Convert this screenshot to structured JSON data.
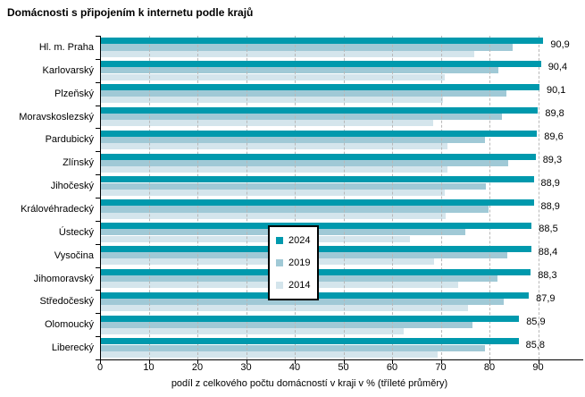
{
  "title": "Domácnosti s připojením k internetu podle krajů",
  "chart_data": {
    "type": "bar",
    "orientation": "horizontal",
    "title": "Domácnosti s připojením k internetu podle krajů",
    "categories": [
      "Hl. m. Praha",
      "Karlovarský",
      "Plzeňský",
      "Moravskoslezský",
      "Pardubický",
      "Zlínský",
      "Jihočeský",
      "Královéhradecký",
      "Ústecký",
      "Vysočina",
      "Jihomoravský",
      "Středočeský",
      "Olomoucký",
      "Liberecký"
    ],
    "series": [
      {
        "name": "2024",
        "color": "#0099ad",
        "values": [
          90.9,
          90.4,
          90.1,
          89.8,
          89.6,
          89.3,
          88.9,
          88.9,
          88.5,
          88.4,
          88.3,
          87.9,
          85.9,
          85.8
        ],
        "value_labels": [
          "90,9",
          "90,4",
          "90,1",
          "89,8",
          "89,6",
          "89,3",
          "88,9",
          "88,9",
          "88,5",
          "88,4",
          "88,3",
          "87,9",
          "85,9",
          "85,8"
        ]
      },
      {
        "name": "2019",
        "color": "#a0c9d6",
        "values": [
          84.6,
          81.6,
          83.3,
          82.4,
          78.9,
          83.7,
          79.0,
          79.6,
          74.9,
          83.4,
          81.4,
          82.7,
          76.4,
          78.8
        ]
      },
      {
        "name": "2014",
        "color": "#d4e5ec",
        "values": [
          76.7,
          70.6,
          70.2,
          68.2,
          71.2,
          71.1,
          70.6,
          70.9,
          63.4,
          68.4,
          73.3,
          75.4,
          62.2,
          69.2
        ]
      }
    ],
    "xlabel": "podíl z celkového počtu domácností v kraji v % (tříleté průměry)",
    "xticks": [
      "0",
      "10",
      "20",
      "30",
      "40",
      "50",
      "60",
      "70",
      "80",
      "90"
    ],
    "xlim": [
      0,
      90
    ],
    "grid": "vertical-dashed",
    "gridline_color": "#b8b8b8",
    "axis_color": "#000000",
    "legend_position": "center-overlay",
    "value_labels_series": "2024"
  }
}
